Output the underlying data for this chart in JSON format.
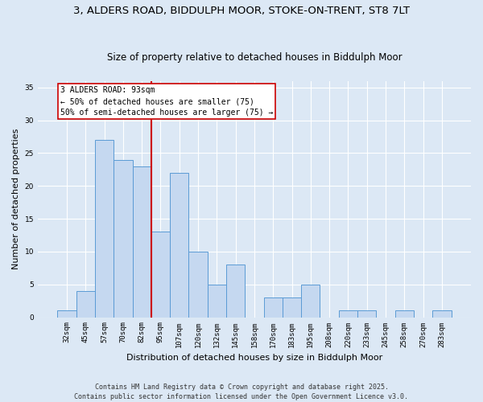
{
  "title_line1": "3, ALDERS ROAD, BIDDULPH MOOR, STOKE-ON-TRENT, ST8 7LT",
  "title_line2": "Size of property relative to detached houses in Biddulph Moor",
  "xlabel": "Distribution of detached houses by size in Biddulph Moor",
  "ylabel": "Number of detached properties",
  "categories": [
    "32sqm",
    "45sqm",
    "57sqm",
    "70sqm",
    "82sqm",
    "95sqm",
    "107sqm",
    "120sqm",
    "132sqm",
    "145sqm",
    "158sqm",
    "170sqm",
    "183sqm",
    "195sqm",
    "208sqm",
    "220sqm",
    "233sqm",
    "245sqm",
    "258sqm",
    "270sqm",
    "283sqm"
  ],
  "values": [
    1,
    4,
    27,
    24,
    23,
    13,
    22,
    10,
    5,
    8,
    0,
    3,
    3,
    5,
    0,
    1,
    1,
    0,
    1,
    0,
    1
  ],
  "bar_color": "#c5d8f0",
  "bar_edge_color": "#5b9bd5",
  "vline_x_index": 4.5,
  "vline_color": "#cc0000",
  "annotation_text_line1": "3 ALDERS ROAD: 93sqm",
  "annotation_text_line2": "← 50% of detached houses are smaller (75)",
  "annotation_text_line3": "50% of semi-detached houses are larger (75) →",
  "annotation_box_color": "#ffffff",
  "annotation_box_edge": "#cc0000",
  "ylim": [
    0,
    36
  ],
  "yticks": [
    0,
    5,
    10,
    15,
    20,
    25,
    30,
    35
  ],
  "figure_bg_color": "#dce8f5",
  "plot_bg_color": "#dce8f5",
  "footer_line1": "Contains HM Land Registry data © Crown copyright and database right 2025.",
  "footer_line2": "Contains public sector information licensed under the Open Government Licence v3.0.",
  "title1_fontsize": 9.5,
  "title2_fontsize": 8.5,
  "axis_label_fontsize": 8,
  "tick_fontsize": 6.5,
  "annotation_fontsize": 7,
  "footer_fontsize": 6
}
